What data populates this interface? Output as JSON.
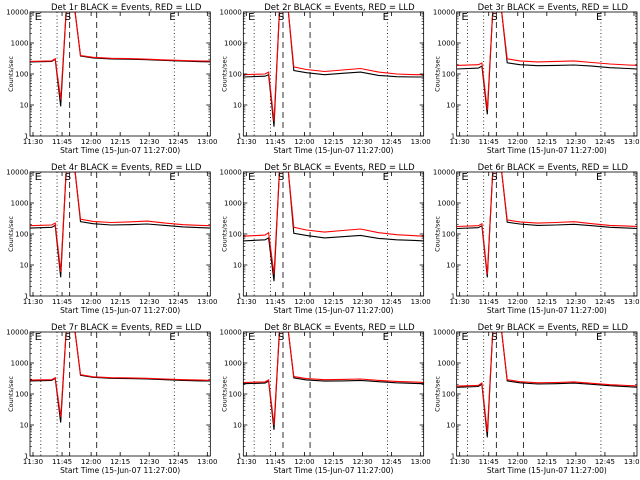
{
  "chart_data": [
    {
      "type": "line",
      "title": "Det 1r BLACK = Events, RED = LLD",
      "xlabel": "Start Time (15-Jun-07 11:27:00)",
      "ylabel": "Counts/sec",
      "x_ticks": [
        "11:30",
        "11:45",
        "12:00",
        "12:15",
        "12:30",
        "12:45",
        "13:00"
      ],
      "y_ticks": [
        "1",
        "10",
        "100",
        "1000",
        "10000"
      ],
      "xlim": [
        0,
        100
      ],
      "ylim": [
        1,
        10000
      ],
      "y_scale": "log",
      "markers": [
        "E",
        "S",
        "E"
      ],
      "colors": {
        "events": "#000000",
        "lld": "#ff0000"
      },
      "series": [
        {
          "name": "BLACK = Events",
          "x": [
            0,
            12,
            14,
            17,
            20,
            25,
            28,
            35,
            45,
            55,
            65,
            75,
            85,
            95,
            100
          ],
          "y": [
            245,
            255,
            300,
            9,
            10000,
            10000,
            380,
            330,
            305,
            300,
            290,
            275,
            260,
            250,
            248
          ]
        },
        {
          "name": "RED = LLD",
          "x": [
            0,
            12,
            14,
            17,
            20,
            25,
            28,
            35,
            45,
            55,
            65,
            75,
            85,
            95,
            100
          ],
          "y": [
            255,
            265,
            310,
            15,
            10000,
            10000,
            395,
            345,
            320,
            315,
            300,
            285,
            270,
            262,
            260
          ]
        }
      ]
    },
    {
      "type": "line",
      "title": "Det 2r BLACK = Events, RED = LLD",
      "xlabel": "Start Time (15-Jun-07 11:27:00)",
      "ylabel": "Counts/sec",
      "x_ticks": [
        "11:30",
        "11:45",
        "12:00",
        "12:15",
        "12:30",
        "12:45",
        "13:00"
      ],
      "y_ticks": [
        "1",
        "10",
        "100",
        "1000",
        "10000"
      ],
      "xlim": [
        0,
        100
      ],
      "ylim": [
        1,
        10000
      ],
      "y_scale": "log",
      "markers": [
        "E",
        "S",
        "E"
      ],
      "colors": {
        "events": "#000000",
        "lld": "#ff0000"
      },
      "series": [
        {
          "name": "BLACK = Events",
          "x": [
            0,
            12,
            14,
            17,
            20,
            25,
            28,
            35,
            45,
            55,
            65,
            75,
            85,
            95,
            100
          ],
          "y": [
            80,
            85,
            95,
            2,
            10000,
            10000,
            130,
            110,
            95,
            105,
            115,
            90,
            82,
            80,
            80
          ]
        },
        {
          "name": "RED = LLD",
          "x": [
            0,
            12,
            14,
            17,
            20,
            25,
            28,
            35,
            45,
            55,
            65,
            75,
            85,
            95,
            100
          ],
          "y": [
            95,
            100,
            115,
            3,
            10000,
            10000,
            170,
            140,
            120,
            135,
            150,
            115,
            100,
            95,
            95
          ]
        }
      ]
    },
    {
      "type": "line",
      "title": "Det 3r BLACK = Events, RED = LLD",
      "xlabel": "Start Time (15-Jun-07 11:27:00)",
      "ylabel": "Counts/sec",
      "x_ticks": [
        "11:30",
        "11:45",
        "12:00",
        "12:15",
        "12:30",
        "12:45",
        "13:00"
      ],
      "y_ticks": [
        "1",
        "10",
        "100",
        "1000",
        "10000"
      ],
      "xlim": [
        0,
        100
      ],
      "ylim": [
        1,
        10000
      ],
      "y_scale": "log",
      "markers": [
        "E",
        "S",
        "E"
      ],
      "colors": {
        "events": "#000000",
        "lld": "#ff0000"
      },
      "series": [
        {
          "name": "BLACK = Events",
          "x": [
            0,
            12,
            14,
            17,
            20,
            25,
            28,
            35,
            45,
            55,
            65,
            75,
            85,
            95,
            100
          ],
          "y": [
            145,
            155,
            180,
            5,
            10000,
            10000,
            230,
            200,
            185,
            190,
            195,
            180,
            160,
            150,
            145
          ]
        },
        {
          "name": "RED = LLD",
          "x": [
            0,
            12,
            14,
            17,
            20,
            25,
            28,
            35,
            45,
            55,
            65,
            75,
            85,
            95,
            100
          ],
          "y": [
            190,
            200,
            225,
            7,
            10000,
            10000,
            310,
            265,
            245,
            255,
            265,
            235,
            210,
            195,
            190
          ]
        }
      ]
    },
    {
      "type": "line",
      "title": "Det 4r BLACK = Events, RED = LLD",
      "xlabel": "Start Time (15-Jun-07 11:27:00)",
      "ylabel": "Counts/sec",
      "x_ticks": [
        "11:30",
        "11:45",
        "12:00",
        "12:15",
        "12:30",
        "12:45",
        "13:00"
      ],
      "y_ticks": [
        "1",
        "10",
        "100",
        "1000",
        "10000"
      ],
      "xlim": [
        0,
        100
      ],
      "ylim": [
        1,
        10000
      ],
      "y_scale": "log",
      "markers": [
        "E",
        "S",
        "E"
      ],
      "colors": {
        "events": "#000000",
        "lld": "#ff0000"
      },
      "series": [
        {
          "name": "BLACK = Events",
          "x": [
            0,
            12,
            14,
            17,
            20,
            25,
            28,
            35,
            45,
            55,
            65,
            75,
            85,
            95,
            100
          ],
          "y": [
            155,
            165,
            190,
            4,
            10000,
            10000,
            250,
            215,
            195,
            200,
            210,
            190,
            170,
            160,
            155
          ]
        },
        {
          "name": "RED = LLD",
          "x": [
            0,
            12,
            14,
            17,
            20,
            25,
            28,
            35,
            45,
            55,
            65,
            75,
            85,
            95,
            100
          ],
          "y": [
            185,
            195,
            225,
            6,
            10000,
            10000,
            300,
            255,
            235,
            245,
            260,
            225,
            200,
            190,
            185
          ]
        }
      ]
    },
    {
      "type": "line",
      "title": "Det 5r BLACK = Events, RED = LLD",
      "xlabel": "Start Time (15-Jun-07 11:27:00)",
      "ylabel": "Counts/sec",
      "x_ticks": [
        "11:30",
        "11:45",
        "12:00",
        "12:15",
        "12:30",
        "12:45",
        "13:00"
      ],
      "y_ticks": [
        "1",
        "10",
        "100",
        "1000",
        "10000"
      ],
      "xlim": [
        0,
        100
      ],
      "ylim": [
        1,
        10000
      ],
      "y_scale": "log",
      "markers": [
        "E",
        "S",
        "E"
      ],
      "colors": {
        "events": "#000000",
        "lld": "#ff0000"
      },
      "series": [
        {
          "name": "BLACK = Events",
          "x": [
            0,
            12,
            14,
            17,
            20,
            25,
            28,
            35,
            45,
            55,
            65,
            75,
            85,
            95,
            100
          ],
          "y": [
            60,
            65,
            75,
            3,
            10000,
            10000,
            105,
            90,
            75,
            82,
            90,
            72,
            65,
            62,
            60
          ]
        },
        {
          "name": "RED = LLD",
          "x": [
            0,
            12,
            14,
            17,
            20,
            25,
            28,
            35,
            45,
            55,
            65,
            75,
            85,
            95,
            100
          ],
          "y": [
            85,
            92,
            110,
            5,
            10000,
            10000,
            165,
            135,
            115,
            130,
            145,
            110,
            95,
            88,
            85
          ]
        }
      ]
    },
    {
      "type": "line",
      "title": "Det 6r BLACK = Events, RED = LLD",
      "xlabel": "Start Time (15-Jun-07 11:27:00)",
      "ylabel": "Counts/sec",
      "x_ticks": [
        "11:30",
        "11:45",
        "12:00",
        "12:15",
        "12:30",
        "12:45",
        "13:00"
      ],
      "y_ticks": [
        "1",
        "10",
        "100",
        "1000",
        "10000"
      ],
      "xlim": [
        0,
        100
      ],
      "ylim": [
        1,
        10000
      ],
      "y_scale": "log",
      "markers": [
        "E",
        "S",
        "E"
      ],
      "colors": {
        "events": "#000000",
        "lld": "#ff0000"
      },
      "series": [
        {
          "name": "BLACK = Events",
          "x": [
            0,
            12,
            14,
            17,
            20,
            25,
            28,
            35,
            45,
            55,
            65,
            75,
            85,
            95,
            100
          ],
          "y": [
            150,
            160,
            185,
            4,
            10000,
            10000,
            240,
            210,
            190,
            195,
            205,
            185,
            165,
            155,
            150
          ]
        },
        {
          "name": "RED = LLD",
          "x": [
            0,
            12,
            14,
            17,
            20,
            25,
            28,
            35,
            45,
            55,
            65,
            75,
            85,
            95,
            100
          ],
          "y": [
            175,
            185,
            215,
            5,
            10000,
            10000,
            285,
            245,
            225,
            235,
            250,
            215,
            190,
            180,
            175
          ]
        }
      ]
    },
    {
      "type": "line",
      "title": "Det 7r BLACK = Events, RED = LLD",
      "xlabel": "Start Time (15-Jun-07 11:27:00)",
      "ylabel": "Counts/sec",
      "x_ticks": [
        "11:30",
        "11:45",
        "12:00",
        "12:15",
        "12:30",
        "12:45",
        "13:00"
      ],
      "y_ticks": [
        "1",
        "10",
        "100",
        "1000",
        "10000"
      ],
      "xlim": [
        0,
        100
      ],
      "ylim": [
        1,
        10000
      ],
      "y_scale": "log",
      "markers": [
        "E",
        "S",
        "E"
      ],
      "colors": {
        "events": "#000000",
        "lld": "#ff0000"
      },
      "series": [
        {
          "name": "BLACK = Events",
          "x": [
            0,
            12,
            14,
            17,
            20,
            25,
            28,
            35,
            45,
            55,
            65,
            75,
            85,
            95,
            100
          ],
          "y": [
            265,
            275,
            320,
            12,
            10000,
            10000,
            400,
            345,
            320,
            315,
            305,
            290,
            275,
            265,
            262
          ]
        },
        {
          "name": "RED = LLD",
          "x": [
            0,
            12,
            14,
            17,
            20,
            25,
            28,
            35,
            45,
            55,
            65,
            75,
            85,
            95,
            100
          ],
          "y": [
            280,
            290,
            335,
            18,
            10000,
            10000,
            420,
            360,
            335,
            330,
            320,
            305,
            290,
            280,
            275
          ]
        }
      ]
    },
    {
      "type": "line",
      "title": "Det 8r BLACK = Events, RED = LLD",
      "xlabel": "Start Time (15-Jun-07 11:27:00)",
      "ylabel": "Counts/sec",
      "x_ticks": [
        "11:30",
        "11:45",
        "12:00",
        "12:15",
        "12:30",
        "12:45",
        "13:00"
      ],
      "y_ticks": [
        "1",
        "10",
        "100",
        "1000",
        "10000"
      ],
      "xlim": [
        0,
        100
      ],
      "ylim": [
        1,
        10000
      ],
      "y_scale": "log",
      "markers": [
        "E",
        "S",
        "E"
      ],
      "colors": {
        "events": "#000000",
        "lld": "#ff0000"
      },
      "series": [
        {
          "name": "BLACK = Events",
          "x": [
            0,
            12,
            14,
            17,
            20,
            25,
            28,
            35,
            45,
            55,
            65,
            75,
            85,
            95,
            100
          ],
          "y": [
            215,
            225,
            260,
            7,
            10000,
            10000,
            330,
            285,
            260,
            265,
            275,
            250,
            230,
            220,
            215
          ]
        },
        {
          "name": "RED = LLD",
          "x": [
            0,
            12,
            14,
            17,
            20,
            25,
            28,
            35,
            45,
            55,
            65,
            75,
            85,
            95,
            100
          ],
          "y": [
            235,
            245,
            285,
            10,
            10000,
            10000,
            365,
            315,
            290,
            295,
            305,
            275,
            255,
            242,
            236
          ]
        }
      ]
    },
    {
      "type": "line",
      "title": "Det 9r BLACK = Events, RED = LLD",
      "xlabel": "Start Time (15-Jun-07 11:27:00)",
      "ylabel": "Counts/sec",
      "x_ticks": [
        "11:30",
        "11:45",
        "12:00",
        "12:15",
        "12:30",
        "12:45",
        "13:00"
      ],
      "y_ticks": [
        "1",
        "10",
        "100",
        "1000",
        "10000"
      ],
      "xlim": [
        0,
        100
      ],
      "ylim": [
        1,
        10000
      ],
      "y_scale": "log",
      "markers": [
        "E",
        "S",
        "E"
      ],
      "colors": {
        "events": "#000000",
        "lld": "#ff0000"
      },
      "series": [
        {
          "name": "BLACK = Events",
          "x": [
            0,
            12,
            14,
            17,
            20,
            25,
            28,
            35,
            45,
            55,
            65,
            75,
            85,
            95,
            100
          ],
          "y": [
            165,
            175,
            205,
            4,
            10000,
            10000,
            265,
            230,
            210,
            215,
            225,
            205,
            185,
            172,
            166
          ]
        },
        {
          "name": "RED = LLD",
          "x": [
            0,
            12,
            14,
            17,
            20,
            25,
            28,
            35,
            45,
            55,
            65,
            75,
            85,
            95,
            100
          ],
          "y": [
            180,
            190,
            225,
            6,
            10000,
            10000,
            290,
            250,
            230,
            235,
            245,
            222,
            200,
            188,
            182
          ]
        }
      ]
    }
  ]
}
